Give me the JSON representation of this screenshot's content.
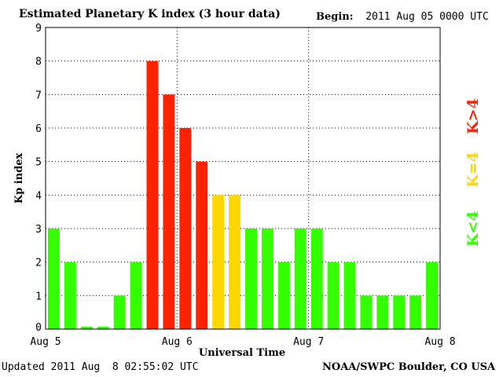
{
  "header": {
    "title": "Estimated Planetary K index (3 hour data)",
    "begin_label": "Begin:",
    "begin_value": "2011 Aug 05 0000 UTC"
  },
  "footer": {
    "updated": "Updated 2011 Aug  8 02:55:02 UTC",
    "credit": "NOAA/SWPC Boulder, CO USA"
  },
  "colors": {
    "below4": "#33ff00",
    "equal4": "#ffd700",
    "above4": "#ff2200"
  },
  "legend": {
    "below": "K<4",
    "equal": "K=4",
    "above": "K>4"
  },
  "chart_data": {
    "type": "bar",
    "title": "Estimated Planetary K index (3 hour data)",
    "xlabel": "Universal Time",
    "ylabel": "Kp index",
    "ylim": [
      0,
      9
    ],
    "yticks": [
      0,
      1,
      2,
      3,
      4,
      5,
      6,
      7,
      8,
      9
    ],
    "xtick_labels": [
      "Aug 5",
      "Aug 6",
      "Aug 7",
      "Aug 8"
    ],
    "grid": true,
    "values": [
      3,
      2,
      0,
      0,
      1,
      2,
      8,
      7,
      6,
      5,
      4,
      4,
      3,
      3,
      2,
      3,
      3,
      2,
      2,
      1,
      1,
      1,
      1,
      2
    ]
  }
}
